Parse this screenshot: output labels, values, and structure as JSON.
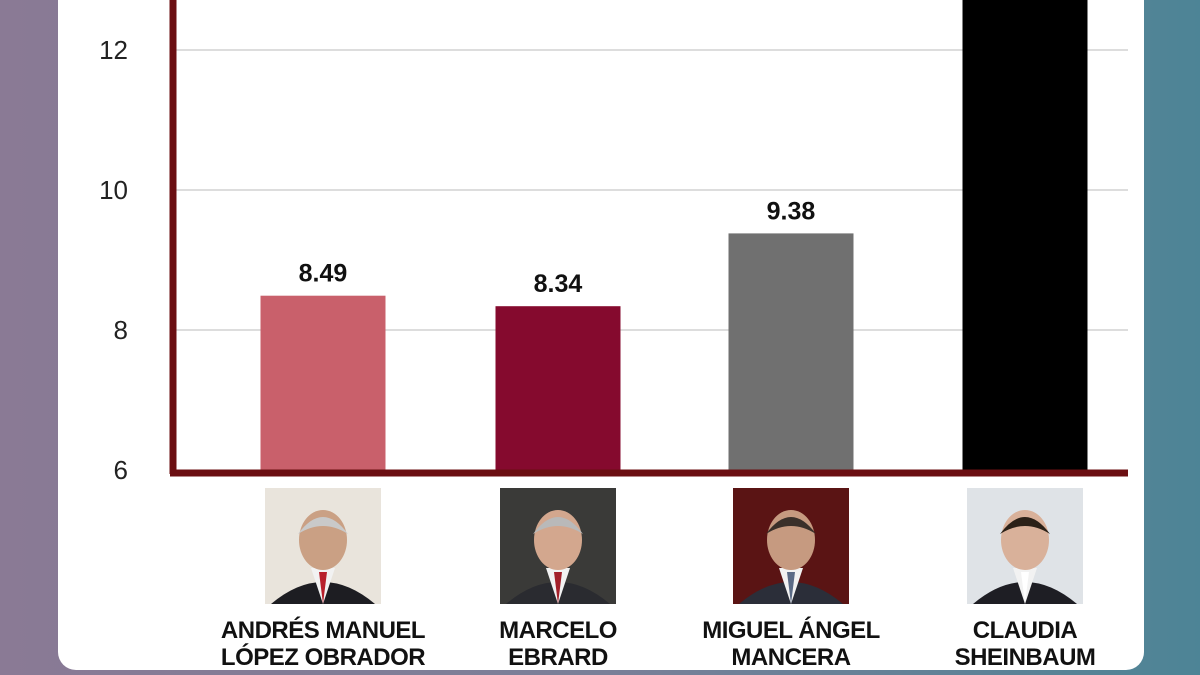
{
  "chart_data": {
    "type": "bar",
    "categories": [
      "ANDRÉS MANUEL LÓPEZ OBRADOR",
      "MARCELO EBRARD",
      "MIGUEL ÁNGEL MANCERA",
      "CLAUDIA SHEINBAUM"
    ],
    "category_lines": [
      [
        "ANDRÉS MANUEL",
        "LÓPEZ OBRADOR"
      ],
      [
        "MARCELO",
        "EBRARD"
      ],
      [
        "MIGUEL ÁNGEL",
        "MANCERA"
      ],
      [
        "CLAUDIA",
        "SHEINBAUM"
      ]
    ],
    "values": [
      8.49,
      8.34,
      9.38,
      13
    ],
    "data_labels": [
      "8.49",
      "8.34",
      "9.38",
      null
    ],
    "colors": [
      "#c9606b",
      "#850a2e",
      "#707070",
      "#000000"
    ],
    "yticks": [
      6,
      8,
      10,
      12
    ],
    "ylim": [
      6,
      12.7
    ],
    "grid": true,
    "axis_color": "#6b0f12"
  },
  "photo_icons": [
    "portrait-amlo-icon",
    "portrait-ebrard-icon",
    "portrait-mancera-icon",
    "portrait-sheinbaum-icon"
  ]
}
